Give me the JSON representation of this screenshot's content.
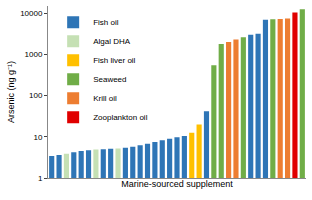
{
  "chart_data": {
    "type": "bar",
    "x_label": "Marine-sourced supplement",
    "y_label": "Arsenic (ng g⁻¹)",
    "categories": [
      null,
      null,
      null,
      null,
      null,
      null,
      null,
      null,
      null,
      null,
      null,
      null,
      null,
      null,
      null,
      null,
      null,
      null,
      null,
      null,
      null,
      null,
      null,
      null,
      null,
      null,
      null,
      null,
      null,
      null,
      null,
      null,
      null,
      null,
      null
    ],
    "series": [
      {
        "name": "Fish oil",
        "color": "#2e75b6",
        "values": [
          3.4,
          3.6,
          null,
          4.2,
          4.5,
          4.7,
          null,
          5.0,
          5.1,
          null,
          5.4,
          5.7,
          6.2,
          6.8,
          7.5,
          8.2,
          9.0,
          9.8,
          10.5,
          null,
          null,
          42,
          null,
          null,
          null,
          null,
          null,
          3000,
          3200,
          7000,
          null,
          null,
          null,
          null,
          null
        ]
      },
      {
        "name": "Algal DHA",
        "color": "#c5e0b4",
        "values": [
          null,
          null,
          3.9,
          null,
          null,
          null,
          4.9,
          null,
          null,
          5.2,
          null,
          null,
          null,
          null,
          null,
          null,
          null,
          null,
          null,
          null,
          null,
          null,
          null,
          null,
          null,
          null,
          null,
          null,
          null,
          null,
          null,
          null,
          null,
          null,
          null
        ]
      },
      {
        "name": "Fish liver oil",
        "color": "#ffc000",
        "values": [
          null,
          null,
          null,
          null,
          null,
          null,
          null,
          null,
          null,
          null,
          null,
          null,
          null,
          null,
          null,
          null,
          null,
          null,
          null,
          12.5,
          20,
          null,
          null,
          null,
          null,
          null,
          null,
          null,
          null,
          null,
          null,
          null,
          null,
          null,
          null
        ]
      },
      {
        "name": "Seaweed",
        "color": "#70ad47",
        "values": [
          null,
          null,
          null,
          null,
          null,
          null,
          null,
          null,
          null,
          null,
          null,
          null,
          null,
          null,
          null,
          null,
          null,
          null,
          null,
          null,
          null,
          null,
          550,
          1800,
          null,
          null,
          2600,
          null,
          null,
          null,
          7200,
          null,
          null,
          null,
          12500
        ]
      },
      {
        "name": "Krill oil",
        "color": "#ed7d31",
        "values": [
          null,
          null,
          null,
          null,
          null,
          null,
          null,
          null,
          null,
          null,
          null,
          null,
          null,
          null,
          null,
          null,
          null,
          null,
          null,
          null,
          null,
          null,
          null,
          null,
          2000,
          2300,
          null,
          null,
          null,
          null,
          null,
          7300,
          7500,
          null,
          null
        ]
      },
      {
        "name": "Zooplankton oil",
        "color": "#e00000",
        "values": [
          null,
          null,
          null,
          null,
          null,
          null,
          null,
          null,
          null,
          null,
          null,
          null,
          null,
          null,
          null,
          null,
          null,
          null,
          null,
          null,
          null,
          null,
          null,
          null,
          null,
          null,
          null,
          null,
          null,
          null,
          null,
          null,
          null,
          10500,
          null
        ]
      }
    ],
    "ylim": [
      1,
      15000
    ],
    "yticks": [
      1,
      10,
      100,
      1000,
      10000
    ],
    "log": "y",
    "grid": false,
    "legend": "top-left",
    "tick_labels": "y"
  }
}
